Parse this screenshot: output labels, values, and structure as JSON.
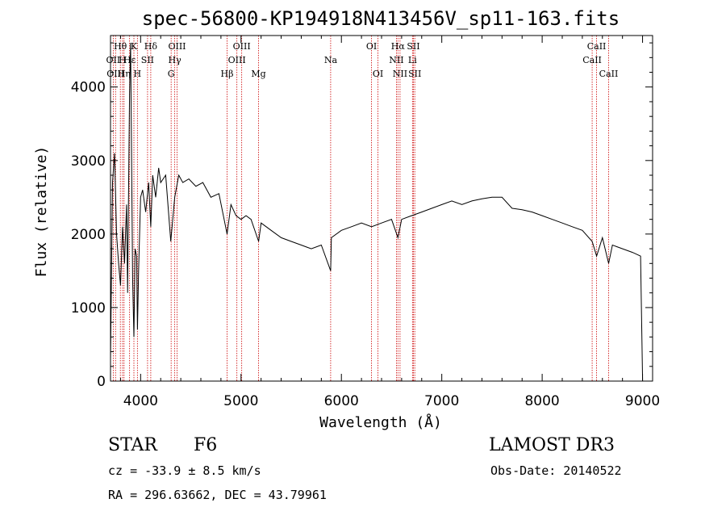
{
  "chart_data": {
    "type": "line",
    "title": "spec-56800-KP194918N413456V_sp11-163.fits",
    "xlabel": "Wavelength (Å)",
    "ylabel": "Flux (relative)",
    "xlim": [
      3700,
      9100
    ],
    "ylim": [
      0,
      4700
    ],
    "xticks": [
      4000,
      5000,
      6000,
      7000,
      8000,
      9000
    ],
    "xtick_labels": [
      "4000",
      "5000",
      "6000",
      "7000",
      "8000",
      "9000"
    ],
    "yticks": [
      0,
      1000,
      2000,
      3000,
      4000
    ],
    "ytick_labels": [
      "0",
      "1000",
      "2000",
      "3000",
      "4000"
    ],
    "grid": false,
    "series": [
      {
        "name": "spectrum",
        "x": [
          3700,
          3720,
          3740,
          3760,
          3780,
          3800,
          3820,
          3840,
          3860,
          3870,
          3880,
          3890,
          3900,
          3920,
          3933,
          3945,
          3960,
          3968,
          3980,
          4000,
          4020,
          4050,
          4080,
          4101,
          4120,
          4150,
          4180,
          4200,
          4250,
          4300,
          4340,
          4380,
          4420,
          4480,
          4550,
          4620,
          4700,
          4780,
          4861,
          4900,
          4950,
          5000,
          5050,
          5100,
          5175,
          5200,
          5300,
          5400,
          5500,
          5600,
          5700,
          5800,
          5893,
          5900,
          6000,
          6100,
          6200,
          6300,
          6400,
          6500,
          6563,
          6600,
          6700,
          6800,
          6900,
          7000,
          7100,
          7200,
          7300,
          7400,
          7500,
          7600,
          7700,
          7800,
          7900,
          8000,
          8100,
          8200,
          8300,
          8400,
          8498,
          8542,
          8600,
          8662,
          8700,
          8800,
          8900,
          8980,
          9000
        ],
        "y": [
          300,
          2700,
          3100,
          2000,
          1600,
          1300,
          2100,
          1600,
          2400,
          1200,
          2600,
          3900,
          4600,
          1400,
          600,
          1800,
          1700,
          700,
          1500,
          2500,
          2600,
          2300,
          2700,
          2100,
          2800,
          2500,
          2900,
          2700,
          2800,
          1900,
          2500,
          2800,
          2700,
          2750,
          2650,
          2700,
          2500,
          2550,
          2000,
          2400,
          2250,
          2200,
          2250,
          2200,
          1900,
          2150,
          2050,
          1950,
          1900,
          1850,
          1800,
          1850,
          1500,
          1950,
          2050,
          2100,
          2150,
          2100,
          2150,
          2200,
          1950,
          2200,
          2250,
          2300,
          2350,
          2400,
          2450,
          2400,
          2450,
          2480,
          2500,
          2500,
          2350,
          2330,
          2300,
          2250,
          2200,
          2150,
          2100,
          2050,
          1900,
          1700,
          1950,
          1600,
          1850,
          1800,
          1750,
          1700,
          0
        ]
      }
    ],
    "line_labels": [
      {
        "label": "Hθ",
        "wavelength": 3798,
        "row": 0
      },
      {
        "label": "OII",
        "wavelength": 3727,
        "row": 1
      },
      {
        "label": "OIII",
        "wavelength": 3750,
        "row": 2
      },
      {
        "label": "Hη",
        "wavelength": 3835,
        "row": 2
      },
      {
        "label": "H",
        "wavelength": 3820,
        "row": 1
      },
      {
        "label": "K",
        "wavelength": 3933,
        "row": 0
      },
      {
        "label": "Hε",
        "wavelength": 3890,
        "row": 1
      },
      {
        "label": "H",
        "wavelength": 3968,
        "row": 2
      },
      {
        "label": "SII",
        "wavelength": 4069,
        "row": 1
      },
      {
        "label": "Hδ",
        "wavelength": 4101,
        "row": 0
      },
      {
        "label": "OIII",
        "wavelength": 4363,
        "row": 0
      },
      {
        "label": "Hγ",
        "wavelength": 4340,
        "row": 1
      },
      {
        "label": "G",
        "wavelength": 4304,
        "row": 2
      },
      {
        "label": "Hβ",
        "wavelength": 4861,
        "row": 2
      },
      {
        "label": "OIII",
        "wavelength": 4959,
        "row": 1
      },
      {
        "label": "OIII",
        "wavelength": 5007,
        "row": 0
      },
      {
        "label": "Mg",
        "wavelength": 5175,
        "row": 2
      },
      {
        "label": "Na",
        "wavelength": 5893,
        "row": 1
      },
      {
        "label": "OI",
        "wavelength": 6300,
        "row": 0
      },
      {
        "label": "OI",
        "wavelength": 6364,
        "row": 2
      },
      {
        "label": "Hα",
        "wavelength": 6563,
        "row": 0
      },
      {
        "label": "NII",
        "wavelength": 6548,
        "row": 1
      },
      {
        "label": "NII",
        "wavelength": 6584,
        "row": 2
      },
      {
        "label": "SII",
        "wavelength": 6717,
        "row": 0
      },
      {
        "label": "Li",
        "wavelength": 6708,
        "row": 1
      },
      {
        "label": "SII",
        "wavelength": 6731,
        "row": 2
      },
      {
        "label": "CaII",
        "wavelength": 8542,
        "row": 0
      },
      {
        "label": "CaII",
        "wavelength": 8498,
        "row": 1
      },
      {
        "label": "CaII",
        "wavelength": 8662,
        "row": 2
      }
    ]
  },
  "info": {
    "object_class": "STAR",
    "subclass": "F6",
    "redshift": "cz = -33.9 ± 8.5 km/s",
    "coordinates": "RA = 296.63662, DEC =  43.79961",
    "survey": "LAMOST DR3",
    "obs_date": "Obs-Date: 20140522"
  },
  "colors": {
    "spectrum": "#000000",
    "line_marker": "#cc0000",
    "axes": "#000000"
  }
}
